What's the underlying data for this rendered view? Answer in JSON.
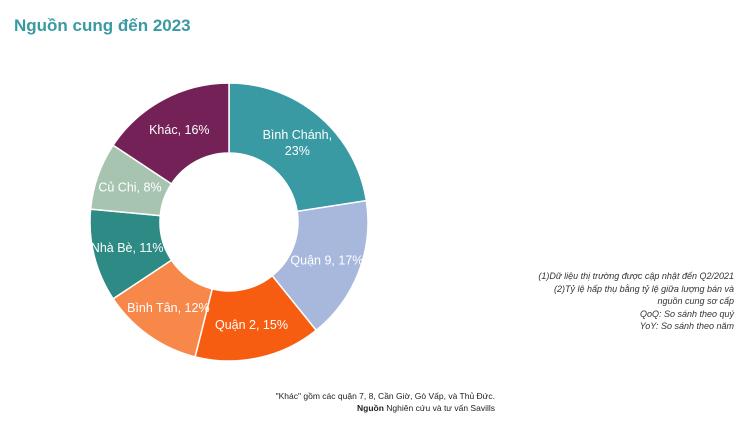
{
  "header": {
    "title": "Nguồn cung đến 2023"
  },
  "chart_data": {
    "type": "pie",
    "variant": "donut",
    "title": "Nguồn cung đến 2023",
    "unit": "%",
    "slices": [
      {
        "label_lines": [
          "Bình Chánh,",
          "23%"
        ],
        "value": 23,
        "color": "#3a9aa3"
      },
      {
        "label_lines": [
          "Quận 9, 17%"
        ],
        "value": 17,
        "color": "#a7b8dc"
      },
      {
        "label_lines": [
          "Quận 2, 15%"
        ],
        "value": 15,
        "color": "#f75d10"
      },
      {
        "label_lines": [
          "Bình Tân, 12%"
        ],
        "value": 12,
        "color": "#f7884a"
      },
      {
        "label_lines": [
          "Nhà Bè, 11%"
        ],
        "value": 11,
        "color": "#2e8a84"
      },
      {
        "label_lines": [
          "Củ Chi, 8%"
        ],
        "value": 8,
        "color": "#a7c4b1"
      },
      {
        "label_lines": [
          "Khác, 16%"
        ],
        "value": 16,
        "color": "#742157"
      }
    ]
  },
  "notes": [
    "(1)Dữ liệu thị trường được cập nhật đến Q2/2021",
    "(2)Tỷ lệ hấp thụ bằng tỷ lệ giữa lượng bán và",
    "nguồn cung sơ cấp",
    "QoQ: So sánh theo quý",
    "YoY: So sánh theo năm"
  ],
  "footer": {
    "other_note": "\"Khác\" gồm các quận 7, 8, Cần Giờ, Gò Vấp, và Thủ Đức.",
    "source_label": "Nguồn",
    "source_text": " Nghiên cứu và tư vấn Savills"
  }
}
